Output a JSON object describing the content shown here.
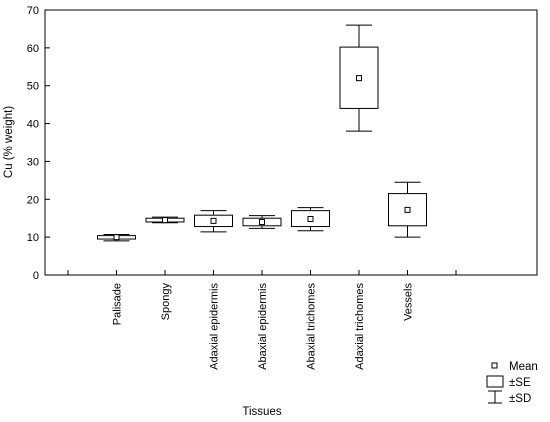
{
  "chart_data": {
    "type": "box",
    "title": "",
    "xlabel": "Tissues",
    "ylabel": "Cu (% weight)",
    "ylim": [
      0,
      70
    ],
    "yticks": [
      0,
      10,
      20,
      30,
      40,
      50,
      60,
      70
    ],
    "grid": false,
    "legend_position": "bottom-right",
    "categories": [
      "Palisade",
      "Spongy",
      "Adaxial epidermis",
      "Abaxial epidermis",
      "Abaxial trichomes",
      "Adaxial trichomes",
      "Vessels"
    ],
    "series": [
      {
        "mean": [
          10.0,
          14.5,
          14.3,
          14.0,
          14.8,
          52.0,
          17.2
        ],
        "se_low": [
          9.5,
          14.0,
          12.8,
          13.0,
          12.8,
          44.0,
          13.0
        ],
        "se_high": [
          10.4,
          15.0,
          15.8,
          15.0,
          17.0,
          60.2,
          21.5
        ],
        "sd_low": [
          9.0,
          13.8,
          11.4,
          12.3,
          11.7,
          38.0,
          10.0
        ],
        "sd_high": [
          10.7,
          15.3,
          17.0,
          15.7,
          17.8,
          66.0,
          24.5
        ]
      }
    ],
    "legend": {
      "mean": "Mean",
      "se": "±SE",
      "sd": "±SD"
    }
  }
}
